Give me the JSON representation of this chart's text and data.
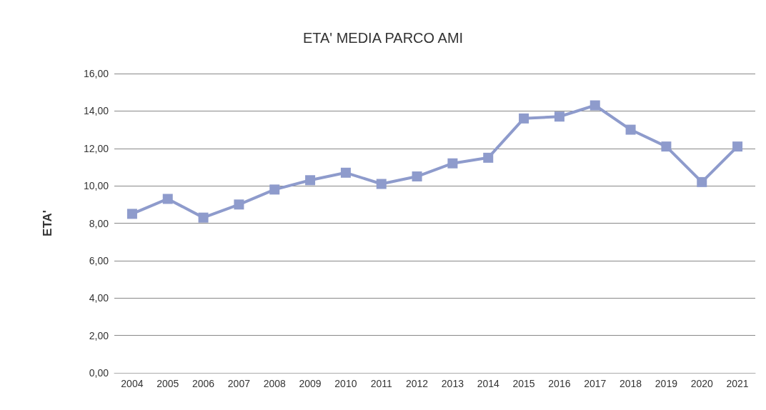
{
  "chart_data": {
    "type": "line",
    "title": "ETA' MEDIA PARCO AMI",
    "ylabel": "ETA'",
    "categories": [
      "2004",
      "2005",
      "2006",
      "2007",
      "2008",
      "2009",
      "2010",
      "2011",
      "2012",
      "2013",
      "2014",
      "2015",
      "2016",
      "2017",
      "2018",
      "2019",
      "2020",
      "2021"
    ],
    "series": [
      {
        "color": "#8e9bcc",
        "values": [
          8.5,
          9.3,
          8.3,
          9.0,
          9.8,
          10.3,
          10.7,
          10.1,
          10.5,
          11.2,
          11.5,
          13.6,
          13.7,
          14.3,
          13.0,
          12.1,
          10.2,
          12.1
        ]
      }
    ],
    "ylim": [
      0,
      16
    ],
    "yticks": [
      {
        "value": 0,
        "label": "0,00"
      },
      {
        "value": 2,
        "label": "2,00"
      },
      {
        "value": 4,
        "label": "4,00"
      },
      {
        "value": 6,
        "label": "6,00"
      },
      {
        "value": 8,
        "label": "8,00"
      },
      {
        "value": 10,
        "label": "10,00"
      },
      {
        "value": 12,
        "label": "12,00"
      },
      {
        "value": 14,
        "label": "14,00"
      },
      {
        "value": 16,
        "label": "16,00"
      }
    ],
    "grid": "y",
    "marker": "square",
    "line_style": "solid"
  }
}
